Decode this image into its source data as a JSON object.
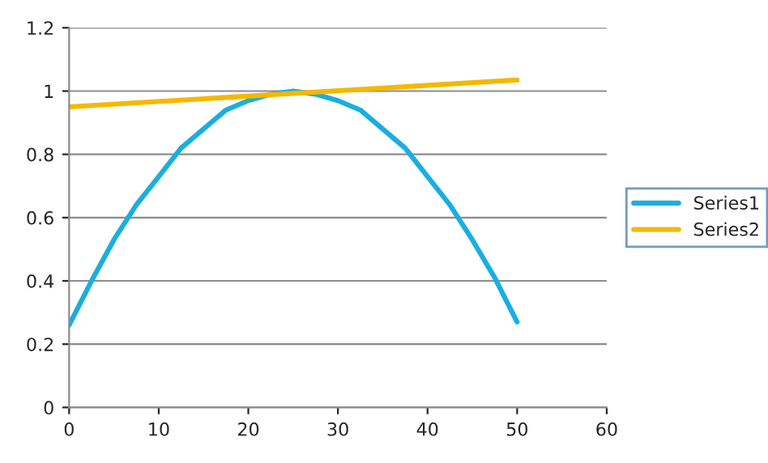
{
  "chart_data": {
    "type": "line",
    "xlim": [
      0,
      60
    ],
    "xticks": [
      0,
      10,
      20,
      30,
      40,
      50,
      60
    ],
    "ylim": [
      0,
      1.2
    ],
    "yticks": [
      0,
      0.2,
      0.4,
      0.6,
      0.8,
      1,
      1.2
    ],
    "grid": "y",
    "legend": "right",
    "marker": "none",
    "line_style": "solid",
    "series": [
      {
        "name": "Series1",
        "color": "#1aaee0",
        "x": [
          0,
          2.5,
          5,
          7.5,
          10,
          12.5,
          15,
          17.5,
          20,
          22.5,
          25,
          27.5,
          30,
          32.5,
          35,
          37.5,
          40,
          42.5,
          45,
          47.5,
          50
        ],
        "values": [
          0.26,
          0.4,
          0.53,
          0.64,
          0.73,
          0.82,
          0.88,
          0.94,
          0.97,
          0.99,
          1.0,
          0.99,
          0.97,
          0.94,
          0.88,
          0.82,
          0.73,
          0.64,
          0.53,
          0.41,
          0.27
        ]
      },
      {
        "name": "Series2",
        "color": "#f5b800",
        "x": [
          0,
          50
        ],
        "values": [
          0.95,
          1.035
        ]
      }
    ]
  }
}
